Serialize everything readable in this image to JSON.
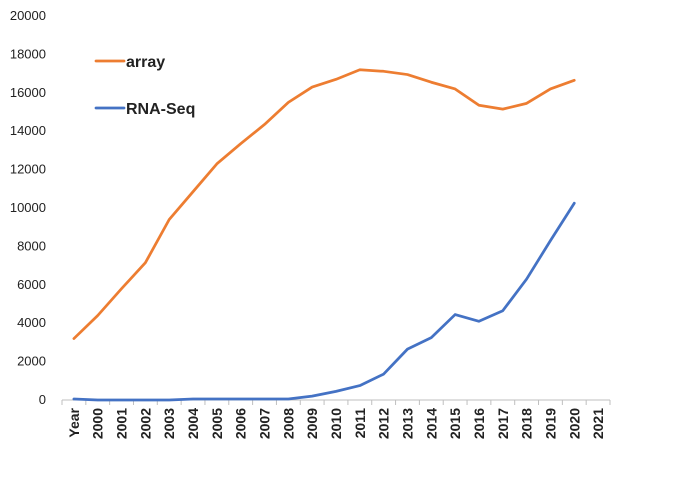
{
  "chart_data": {
    "type": "line",
    "title": "",
    "xlabel": "",
    "ylabel": "",
    "categories": [
      "Year",
      "2000",
      "2001",
      "2002",
      "2003",
      "2004",
      "2005",
      "2006",
      "2007",
      "2008",
      "2009",
      "2010",
      "2011",
      "2012",
      "2013",
      "2014",
      "2015",
      "2016",
      "2017",
      "2018",
      "2019",
      "2020",
      "2021"
    ],
    "ylim": [
      0,
      20000
    ],
    "yticks": [
      0,
      2000,
      4000,
      6000,
      8000,
      10000,
      12000,
      14000,
      16000,
      18000,
      20000
    ],
    "ytick_labels": [
      "0",
      "2000",
      "4000",
      "6000",
      "8000",
      "10000",
      "12000",
      "14000",
      "16000",
      "18000",
      "20000"
    ],
    "grid": false,
    "legend_position": "top-left",
    "series": [
      {
        "name": "array",
        "color": "#ED7D31",
        "values": [
          3200,
          4400,
          5800,
          7150,
          9400,
          10850,
          12300,
          13350,
          14350,
          15500,
          16300,
          16700,
          17200,
          17120,
          16950,
          16550,
          16200,
          15350,
          15150,
          15450,
          16200,
          16650,
          null
        ]
      },
      {
        "name": "RNA-Seq",
        "color": "#4472C4",
        "values": [
          50,
          0,
          0,
          0,
          0,
          50,
          50,
          50,
          50,
          50,
          200,
          450,
          750,
          1350,
          2650,
          3250,
          4450,
          4100,
          4650,
          6300,
          8300,
          10250,
          null
        ]
      }
    ]
  }
}
